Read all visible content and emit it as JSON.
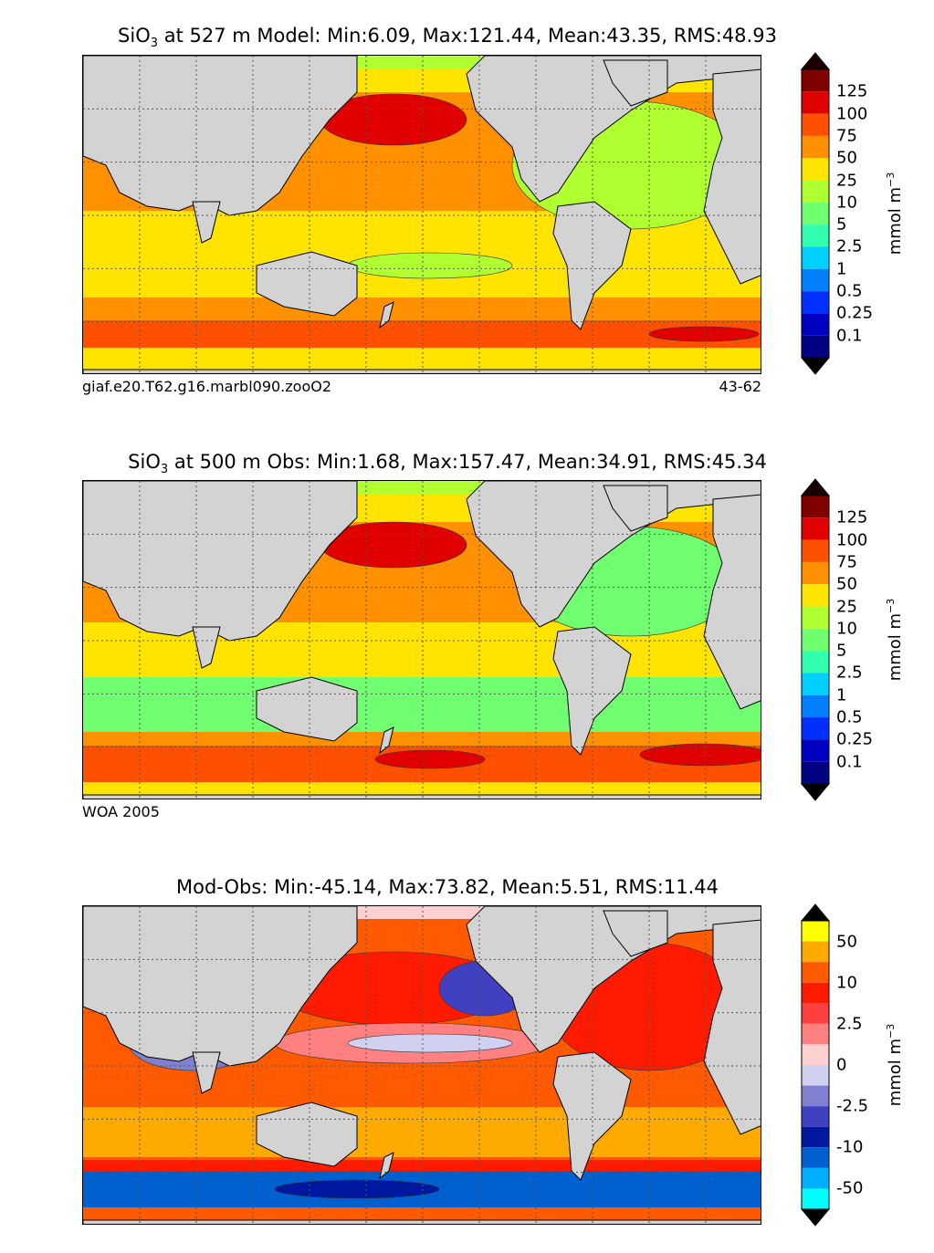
{
  "panels": [
    {
      "id": "model",
      "title_prefix": "SiO",
      "title_sub": "3",
      "title_rest": " at 527 m Model: Min:6.09, Max:121.44, Mean:43.35, RMS:48.93",
      "caption_left": "giaf.e20.T62.g16.marbl090.zooO2",
      "caption_right": "43-62",
      "base_color": "#ffe400",
      "colorbar_labels": [
        "125",
        "100",
        "75",
        "50",
        "25",
        "10",
        "5",
        "2.5",
        "1",
        "0.5",
        "0.25",
        "0.1"
      ],
      "colorbar_colors": [
        "#800000",
        "#e00000",
        "#ff5000",
        "#ff9000",
        "#ffe400",
        "#b0ff30",
        "#70ff70",
        "#30ffb0",
        "#00d0ff",
        "#0080ff",
        "#0030ff",
        "#0000c0",
        "#000080"
      ],
      "units": "mmol m",
      "units_sup": "−3"
    },
    {
      "id": "obs",
      "title_prefix": "SiO",
      "title_sub": "3",
      "title_rest": " at 500 m Obs: Min:1.68, Max:157.47, Mean:34.91, RMS:45.34",
      "caption_left": "WOA 2005",
      "caption_right": "",
      "base_color": "#ffe400",
      "colorbar_labels": [
        "125",
        "100",
        "75",
        "50",
        "25",
        "10",
        "5",
        "2.5",
        "1",
        "0.5",
        "0.25",
        "0.1"
      ],
      "colorbar_colors": [
        "#800000",
        "#e00000",
        "#ff5000",
        "#ff9000",
        "#ffe400",
        "#b0ff30",
        "#70ff70",
        "#30ffb0",
        "#00d0ff",
        "#0080ff",
        "#0030ff",
        "#0000c0",
        "#000080"
      ],
      "units": "mmol m",
      "units_sup": "−3"
    },
    {
      "id": "diff",
      "title_prefix": "",
      "title_sub": "",
      "title_rest": "Mod-Obs: Min:-45.14, Max:73.82, Mean:5.51, RMS:11.44",
      "caption_left": "",
      "caption_right": "",
      "base_color": "#ff5a00",
      "colorbar_labels": [
        "50",
        "",
        "10",
        "",
        "2.5",
        "",
        "0",
        "",
        "-2.5",
        "",
        "-10",
        "",
        "-50"
      ],
      "colorbar_colors": [
        "#ffff00",
        "#ffaa00",
        "#ff5a00",
        "#ff1a00",
        "#ff4040",
        "#ff8080",
        "#ffd0d0",
        "#d0d0f0",
        "#8080d0",
        "#4040c0",
        "#0018a0",
        "#0060d0",
        "#00b0ff",
        "#00ffff"
      ],
      "units": "mmol m",
      "units_sup": "−3"
    }
  ]
}
